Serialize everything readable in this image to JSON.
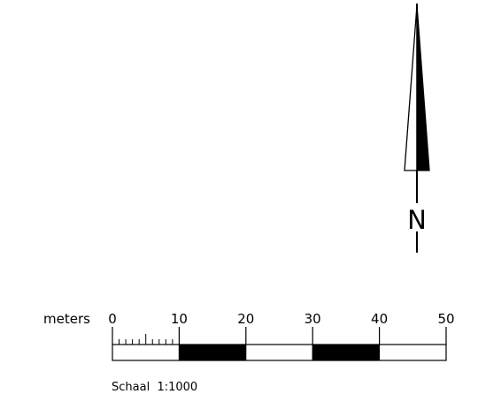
{
  "north_arrow": {
    "letter": "N"
  },
  "scale_bar": {
    "unit_label": "meters",
    "tick_labels": [
      "0",
      "10",
      "20",
      "30",
      "40",
      "50"
    ],
    "segments": [
      "white",
      "black",
      "white",
      "black",
      "white"
    ],
    "subdivisions_first_segment": 10,
    "scale_text": "Schaal  1:1000"
  },
  "colors": {
    "ink": "#000000",
    "paper": "#ffffff"
  }
}
